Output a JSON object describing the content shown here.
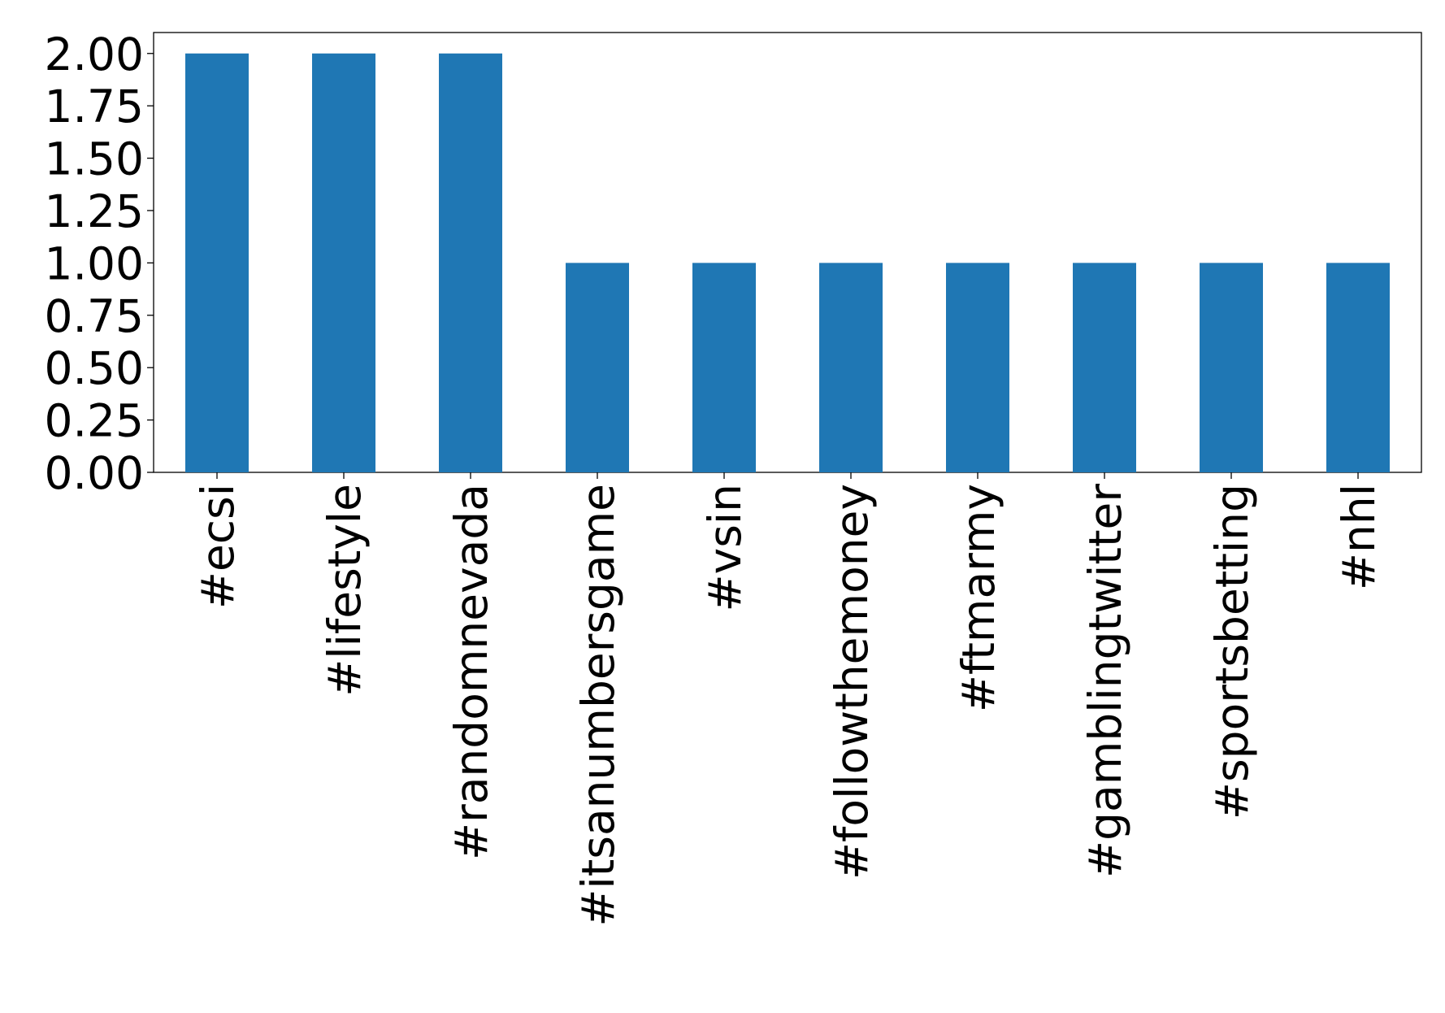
{
  "chart_data": {
    "type": "bar",
    "categories": [
      "#ecsi",
      "#lifestyle",
      "#randomnevada",
      "#itsanumbersgame",
      "#vsin",
      "#followthemoney",
      "#ftmarmy",
      "#gamblingtwitter",
      "#sportsbetting",
      "#nhl"
    ],
    "values": [
      2,
      2,
      2,
      1,
      1,
      1,
      1,
      1,
      1,
      1
    ],
    "color": "#1f77b4",
    "ylim": [
      0,
      2.1
    ],
    "yticks": [
      {
        "value": 0,
        "label": "0.00"
      },
      {
        "value": 0.25,
        "label": "0.25"
      },
      {
        "value": 0.5,
        "label": "0.50"
      },
      {
        "value": 0.75,
        "label": "0.75"
      },
      {
        "value": 1,
        "label": "1.00"
      },
      {
        "value": 1.25,
        "label": "1.25"
      },
      {
        "value": 1.5,
        "label": "1.50"
      },
      {
        "value": 1.75,
        "label": "1.75"
      },
      {
        "value": 2,
        "label": "2.00"
      }
    ],
    "grid": false
  }
}
